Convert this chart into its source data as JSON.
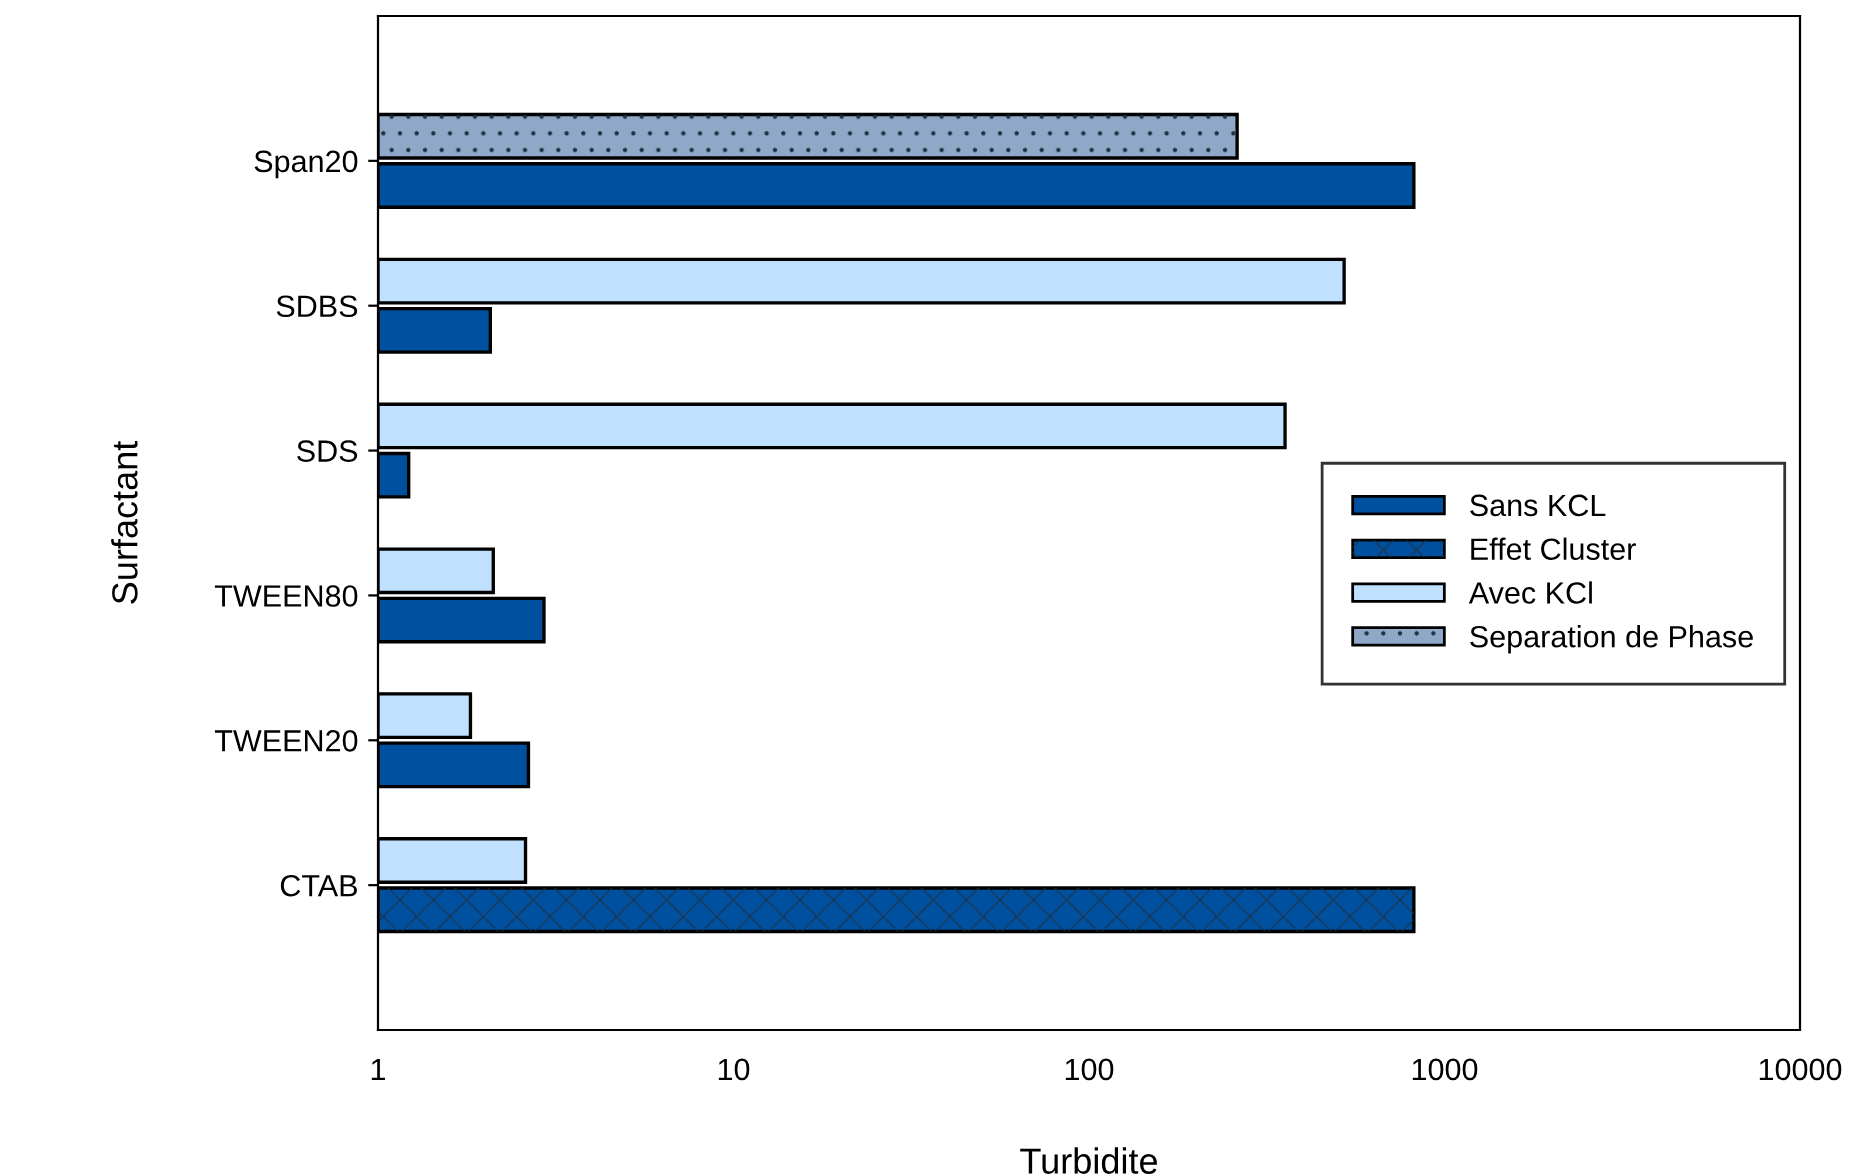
{
  "chart_data": {
    "type": "bar",
    "orientation": "horizontal",
    "xlabel": "Turbidite",
    "ylabel": "Surfactant",
    "categories": [
      "Span20",
      "SDBS",
      "SDS",
      "TWEEN80",
      "TWEEN20",
      "CTAB"
    ],
    "series": [
      {
        "name": "Sans KCL",
        "color": "#0050a0",
        "values": [
          820,
          2.07,
          1.22,
          2.93,
          2.65,
          null
        ]
      },
      {
        "name": "Effet Cluster",
        "color": "#0050a0",
        "values": [
          null,
          null,
          null,
          null,
          null,
          820
        ]
      },
      {
        "name": "Avec KCl",
        "color": "#c0e0ff",
        "values": [
          null,
          522,
          356,
          2.11,
          1.82,
          2.6
        ]
      },
      {
        "name": "Separation de Phase",
        "color": "#90a8c8",
        "values": [
          261,
          null,
          null,
          null,
          null,
          null
        ]
      }
    ],
    "log": "x",
    "xlim": [
      1,
      10000
    ],
    "xticks": [
      1,
      10,
      100,
      1000,
      10000
    ],
    "grid": false,
    "legend": "right"
  }
}
